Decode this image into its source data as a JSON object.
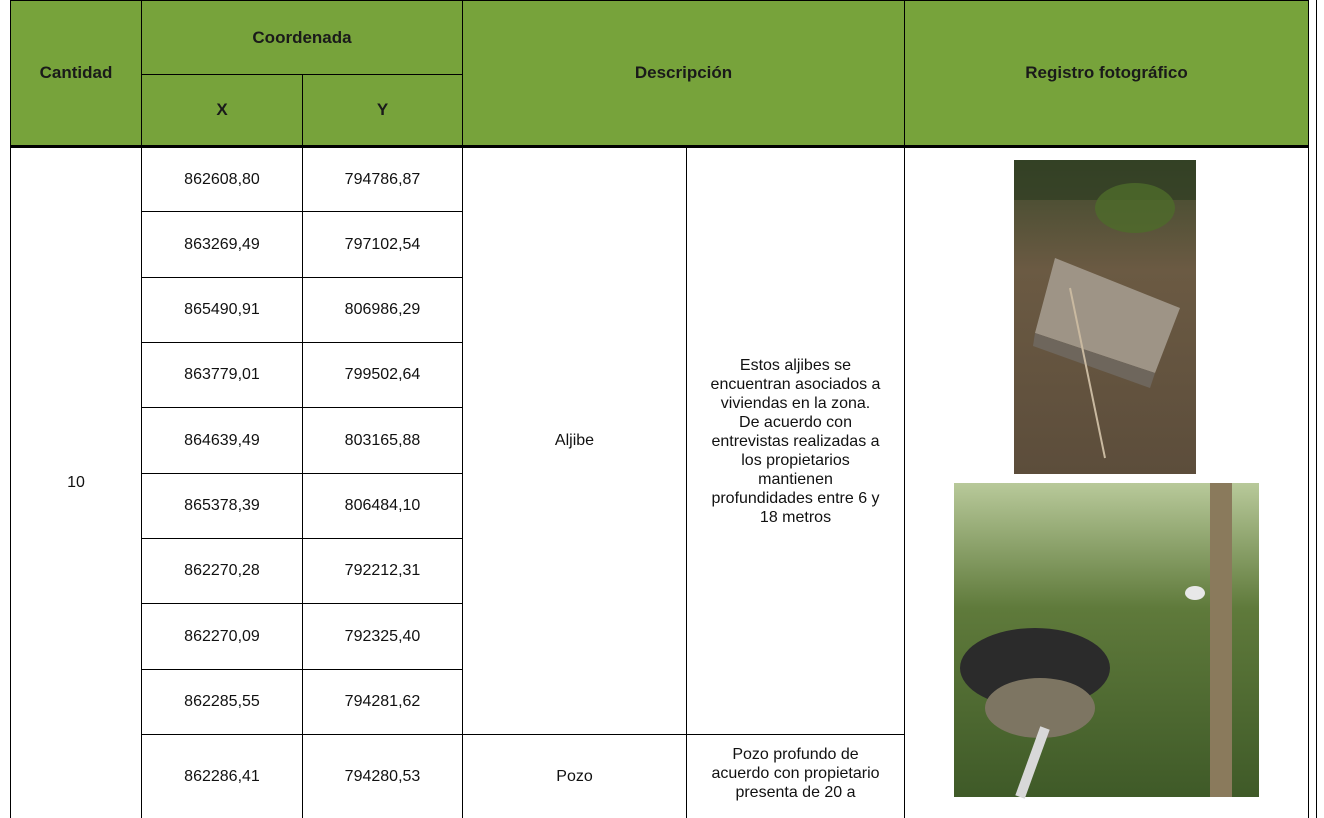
{
  "header": {
    "cantidad": "Cantidad",
    "coordenada": "Coordenada",
    "x": "X",
    "y": "Y",
    "descripcion": "Descripción",
    "registro": "Registro fotográfico"
  },
  "table": {
    "cantidad": "10",
    "groups": [
      {
        "tipo": "Aljibe",
        "detalle": "Estos aljibes se encuentran asociados a viviendas en la zona. De acuerdo con entrevistas realizadas a los propietarios mantienen profundidades entre 6 y 18 metros",
        "coordenadas": [
          [
            "862608,80",
            "794786,87"
          ],
          [
            "863269,49",
            "797102,54"
          ],
          [
            "865490,91",
            "806986,29"
          ],
          [
            "863779,01",
            "799502,64"
          ],
          [
            "864639,49",
            "803165,88"
          ],
          [
            "865378,39",
            "806484,10"
          ],
          [
            "862270,28",
            "792212,31"
          ],
          [
            "862270,09",
            "792325,40"
          ],
          [
            "862285,55",
            "794281,62"
          ]
        ]
      },
      {
        "tipo": "Pozo",
        "detalle": "Pozo profundo de acuerdo con propietario presenta de 20 a",
        "coordenadas": [
          [
            "862286,41",
            "794280,53"
          ]
        ]
      }
    ]
  }
}
